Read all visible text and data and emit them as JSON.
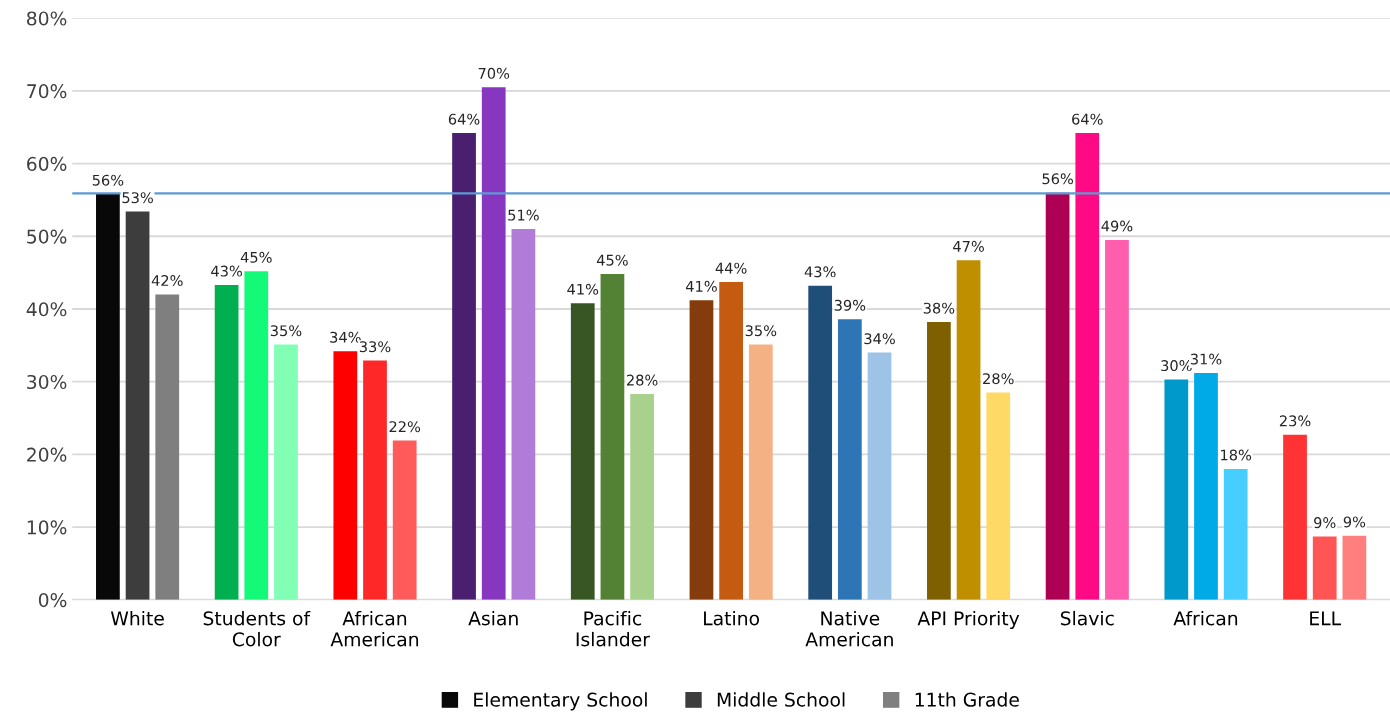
{
  "chart_data": {
    "type": "bar",
    "categories": [
      "White",
      "Students of\nColor",
      "African\nAmerican",
      "Asian",
      "Pacific\nIslander",
      "Latino",
      "Native\nAmerican",
      "API Priority",
      "Slavic",
      "African",
      "ELL"
    ],
    "series": [
      {
        "name": "Elementary School",
        "color": "#080808",
        "colors": [
          "#080808",
          "#00b050",
          "#ff0000",
          "#4b1f6f",
          "#375623",
          "#843c0c",
          "#1f4e79",
          "#7f6000",
          "#ad0055",
          "#0099cc",
          "#ff3333"
        ],
        "values": [
          55.8,
          43.3,
          34.2,
          64.2,
          40.8,
          41.2,
          43.2,
          38.2,
          56.0,
          30.3,
          22.7
        ],
        "value_labels": [
          "56%",
          "43%",
          "34%",
          "64%",
          "41%",
          "41%",
          "43%",
          "38%",
          "56%",
          "30%",
          "23%"
        ]
      },
      {
        "name": "Middle School",
        "color": "#3d3d3d",
        "colors": [
          "#3d3d3d",
          "#14fa78",
          "#ff2828",
          "#8736bf",
          "#548235",
          "#c55a11",
          "#2e75b6",
          "#bf8f00",
          "#ff0a84",
          "#00aae6",
          "#ff5555"
        ],
        "values": [
          53.4,
          45.2,
          32.9,
          70.5,
          44.8,
          43.7,
          38.6,
          46.7,
          64.2,
          31.2,
          8.7
        ],
        "value_labels": [
          "53%",
          "45%",
          "33%",
          "70%",
          "45%",
          "44%",
          "39%",
          "47%",
          "64%",
          "31%",
          "9%"
        ]
      },
      {
        "name": "11th Grade",
        "color": "#7f7f7f",
        "colors": [
          "#7f7f7f",
          "#80ffb5",
          "#ff5b5b",
          "#b07cd8",
          "#a9d18e",
          "#f4b183",
          "#9dc3e6",
          "#ffd966",
          "#ff5eaf",
          "#47ceff",
          "#ff7f7f"
        ],
        "values": [
          42.0,
          35.1,
          21.9,
          51.0,
          28.3,
          35.1,
          34.0,
          28.5,
          49.5,
          18.0,
          8.8
        ],
        "value_labels": [
          "42%",
          "35%",
          "22%",
          "51%",
          "28%",
          "35%",
          "34%",
          "28%",
          "49%",
          "18%",
          "9%"
        ]
      }
    ],
    "ylim": [
      0,
      80
    ],
    "yticks": [
      {
        "value": 0,
        "label": "0%"
      },
      {
        "value": 10,
        "label": "10%"
      },
      {
        "value": 20,
        "label": "20%"
      },
      {
        "value": 30,
        "label": "30%"
      },
      {
        "value": 40,
        "label": "40%"
      },
      {
        "value": 50,
        "label": "50%"
      },
      {
        "value": 60,
        "label": "60%"
      },
      {
        "value": 70,
        "label": "70%"
      },
      {
        "value": 80,
        "label": "80%"
      }
    ],
    "ref_lines": [
      {
        "axis": "y",
        "value": 55.9,
        "color": "#5b9bd5"
      }
    ],
    "grid": "y",
    "legend": "bottom"
  }
}
